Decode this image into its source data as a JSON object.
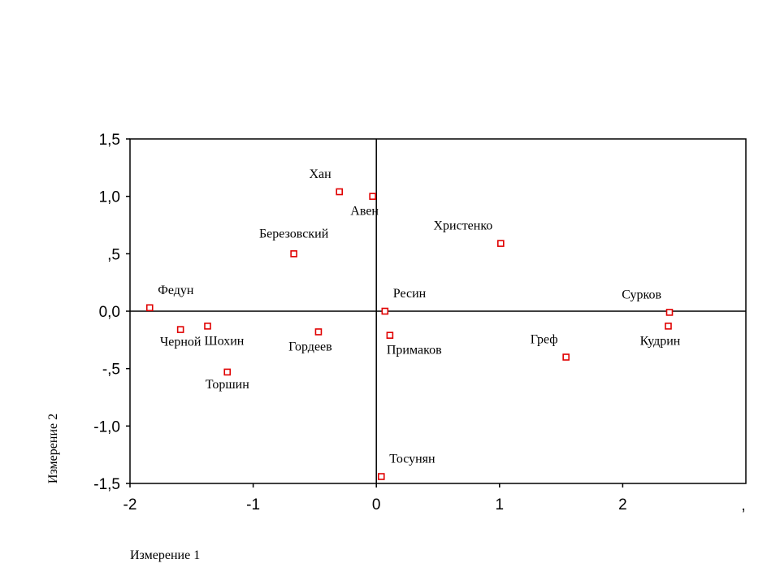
{
  "chart_data": {
    "type": "scatter",
    "title": "",
    "xlabel": "Измерение 1",
    "ylabel": "Измерение 2",
    "xlim": [
      -2,
      3
    ],
    "ylim": [
      -1.5,
      1.5
    ],
    "grid": false,
    "x_ticks": [
      {
        "value": -2,
        "label": "-2"
      },
      {
        "value": -1,
        "label": "-1"
      },
      {
        "value": 0,
        "label": "0"
      },
      {
        "value": 1,
        "label": "1"
      },
      {
        "value": 2,
        "label": "2"
      }
    ],
    "x_tick_partial": ",",
    "y_ticks": [
      {
        "value": 1.5,
        "label": "1,5"
      },
      {
        "value": 1.0,
        "label": "1,0"
      },
      {
        "value": 0.5,
        "label": ",5"
      },
      {
        "value": 0.0,
        "label": "0,0"
      },
      {
        "value": -0.5,
        "label": "-,5"
      },
      {
        "value": -1.0,
        "label": "-1,0"
      },
      {
        "value": -1.5,
        "label": "-1,5"
      }
    ],
    "reference_lines": {
      "x": 0,
      "y": 0
    },
    "marker_color": "#e00000",
    "points": [
      {
        "name": "Хан",
        "x": -0.3,
        "y": 1.04,
        "label_pos": "above-left"
      },
      {
        "name": "Авен",
        "x": -0.03,
        "y": 1.0,
        "label_pos": "below-left"
      },
      {
        "name": "Березовский",
        "x": -0.67,
        "y": 0.5,
        "label_pos": "above"
      },
      {
        "name": "Федун",
        "x": -1.84,
        "y": 0.03,
        "label_pos": "above-right"
      },
      {
        "name": "Черной",
        "x": -1.59,
        "y": -0.16,
        "label_pos": "below"
      },
      {
        "name": "Шохин",
        "x": -1.37,
        "y": -0.13,
        "label_pos": "below-right"
      },
      {
        "name": "Торшин",
        "x": -1.21,
        "y": -0.53,
        "label_pos": "below"
      },
      {
        "name": "Гордеев",
        "x": -0.47,
        "y": -0.18,
        "label_pos": "below-left"
      },
      {
        "name": "Ресин",
        "x": 0.07,
        "y": 0.0,
        "label_pos": "above-right"
      },
      {
        "name": "Примаков",
        "x": 0.11,
        "y": -0.21,
        "label_pos": "below-right"
      },
      {
        "name": "Христенко",
        "x": 1.01,
        "y": 0.59,
        "label_pos": "above-left"
      },
      {
        "name": "Греф",
        "x": 1.54,
        "y": -0.4,
        "label_pos": "above-left"
      },
      {
        "name": "Сурков",
        "x": 2.38,
        "y": -0.01,
        "label_pos": "above-left"
      },
      {
        "name": "Кудрин",
        "x": 2.37,
        "y": -0.13,
        "label_pos": "below-left"
      },
      {
        "name": "Тосунян",
        "x": 0.04,
        "y": -1.44,
        "label_pos": "above-right"
      }
    ]
  }
}
